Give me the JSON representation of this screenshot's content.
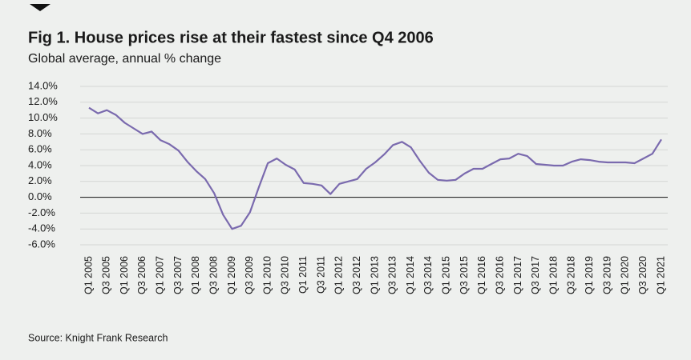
{
  "chart_data": {
    "type": "line",
    "title": "Fig 1. House prices rise at their fastest since Q4 2006",
    "subtitle": "Global average, annual % change",
    "source": "Source: Knight Frank Research",
    "color": "#7a6aae",
    "grid": true,
    "categories": [
      "Q1 2005",
      null,
      "Q3 2005",
      null,
      "Q1 2006",
      null,
      "Q3 2006",
      null,
      "Q1 2007",
      null,
      "Q3 2007",
      null,
      "Q1 2008",
      null,
      "Q3 2008",
      null,
      "Q1 2009",
      null,
      "Q3 2009",
      null,
      "Q1 2010",
      null,
      "Q3 2010",
      null,
      "Q1 2011",
      null,
      "Q3 2011",
      null,
      "Q1 2012",
      null,
      "Q3 2012",
      null,
      "Q1 2013",
      null,
      "Q3 2013",
      null,
      "Q1 2014",
      null,
      "Q3 2014",
      null,
      "Q1 2015",
      null,
      "Q3 2015",
      null,
      "Q1 2016",
      null,
      "Q3 2016",
      null,
      "Q1 2017",
      null,
      "Q3 2017",
      null,
      "Q1 2018",
      null,
      "Q3 2018",
      null,
      "Q1 2019",
      null,
      "Q3 2019",
      null,
      "Q1 2020",
      null,
      "Q3 2020",
      null,
      "Q1 2021"
    ],
    "values": [
      11.3,
      10.6,
      11.0,
      10.4,
      9.4,
      8.7,
      8.0,
      8.3,
      7.2,
      6.7,
      5.9,
      4.5,
      3.3,
      2.3,
      0.5,
      -2.2,
      -4.0,
      -3.6,
      -1.9,
      1.3,
      4.3,
      4.9,
      4.1,
      3.5,
      1.8,
      1.7,
      1.5,
      0.4,
      1.7,
      2.0,
      2.3,
      3.6,
      4.4,
      5.4,
      6.6,
      7.0,
      6.3,
      4.6,
      3.1,
      2.2,
      2.1,
      2.2,
      3.0,
      3.6,
      3.6,
      4.2,
      4.8,
      4.9,
      5.5,
      5.2,
      4.2,
      4.1,
      4.0,
      4.0,
      4.5,
      4.8,
      4.7,
      4.5,
      4.4,
      4.4,
      4.4,
      4.3,
      4.9,
      5.5,
      7.3
    ],
    "ylim": [
      -6,
      14
    ],
    "yticks": [
      {
        "value": 14,
        "label": "14.0%"
      },
      {
        "value": 12,
        "label": "12.0%"
      },
      {
        "value": 10,
        "label": "10.0%"
      },
      {
        "value": 8,
        "label": "8.0%"
      },
      {
        "value": 6,
        "label": "6.0%"
      },
      {
        "value": 4,
        "label": "4.0%"
      },
      {
        "value": 2,
        "label": "2.0%"
      },
      {
        "value": 0,
        "label": "0.0%"
      },
      {
        "value": -2,
        "label": "-2.0%"
      },
      {
        "value": -4,
        "label": "-4.0%"
      },
      {
        "value": -6,
        "label": "-6.0%"
      }
    ]
  }
}
